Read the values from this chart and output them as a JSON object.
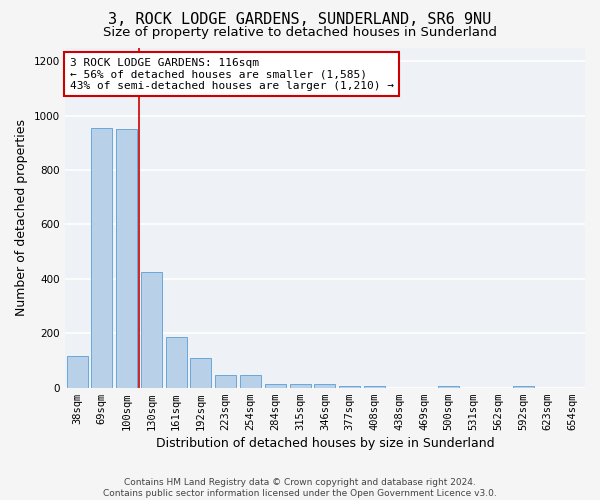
{
  "title": "3, ROCK LODGE GARDENS, SUNDERLAND, SR6 9NU",
  "subtitle": "Size of property relative to detached houses in Sunderland",
  "xlabel": "Distribution of detached houses by size in Sunderland",
  "ylabel": "Number of detached properties",
  "categories": [
    "38sqm",
    "69sqm",
    "100sqm",
    "130sqm",
    "161sqm",
    "192sqm",
    "223sqm",
    "254sqm",
    "284sqm",
    "315sqm",
    "346sqm",
    "377sqm",
    "408sqm",
    "438sqm",
    "469sqm",
    "500sqm",
    "531sqm",
    "562sqm",
    "592sqm",
    "623sqm",
    "654sqm"
  ],
  "values": [
    115,
    955,
    950,
    425,
    185,
    110,
    45,
    45,
    15,
    15,
    15,
    5,
    5,
    0,
    0,
    5,
    0,
    0,
    5,
    0,
    0
  ],
  "bar_color": "#b8d0e8",
  "bar_edge_color": "#5a9fd4",
  "annotation_text": "3 ROCK LODGE GARDENS: 116sqm\n← 56% of detached houses are smaller (1,585)\n43% of semi-detached houses are larger (1,210) →",
  "annotation_box_color": "#ffffff",
  "annotation_box_edge_color": "#cc0000",
  "property_line_color": "#cc0000",
  "ylim": [
    0,
    1250
  ],
  "yticks": [
    0,
    200,
    400,
    600,
    800,
    1000,
    1200
  ],
  "footer": "Contains HM Land Registry data © Crown copyright and database right 2024.\nContains public sector information licensed under the Open Government Licence v3.0.",
  "bg_color": "#eef2f7",
  "grid_color": "#ffffff",
  "title_fontsize": 11,
  "subtitle_fontsize": 9.5,
  "tick_fontsize": 7.5,
  "ylabel_fontsize": 9,
  "xlabel_fontsize": 9,
  "footer_fontsize": 6.5
}
